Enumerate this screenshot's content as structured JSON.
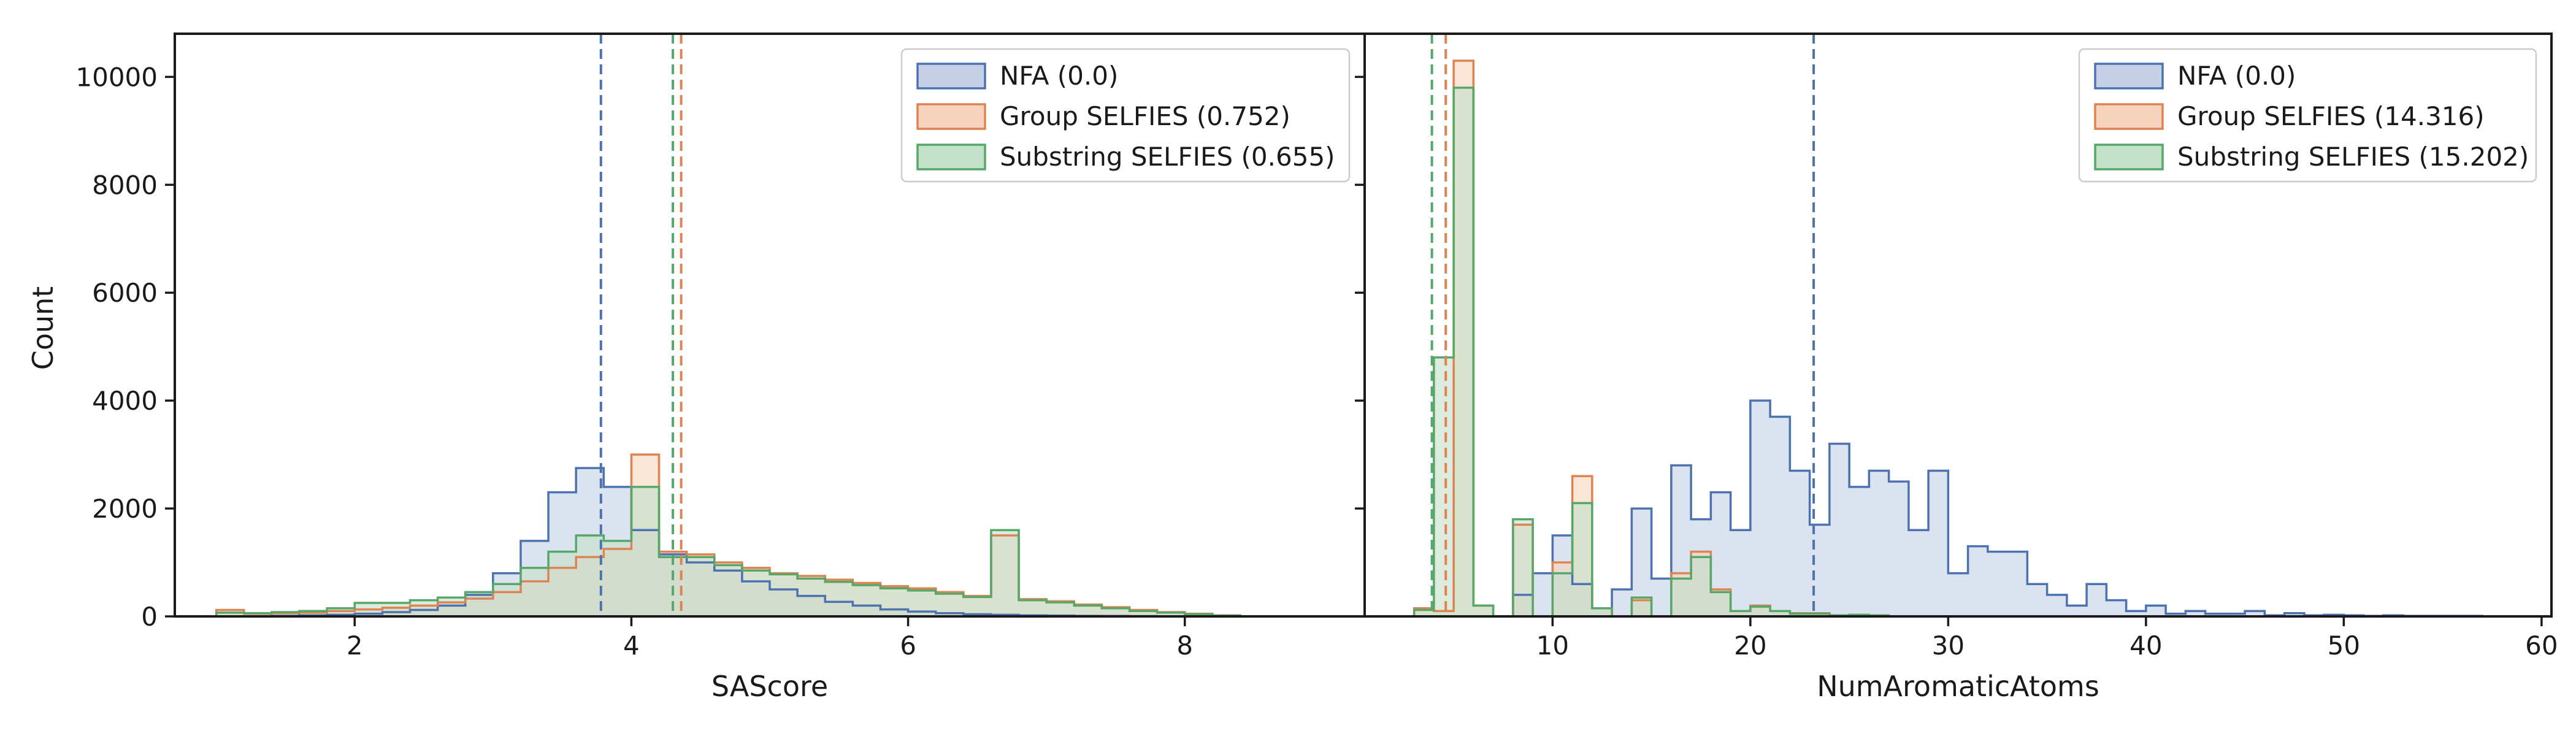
{
  "figure": {
    "ylabel": "Count"
  },
  "chart_data": [
    {
      "type": "histogram",
      "xlabel": "SAScore",
      "ylabel": "Count",
      "xlim": [
        0.7,
        9.3
      ],
      "ylim": [
        0,
        10800
      ],
      "x_ticks": [
        2,
        4,
        6,
        8
      ],
      "y_ticks": [
        0,
        2000,
        4000,
        6000,
        8000,
        10000
      ],
      "legend_position": "top-right",
      "series": [
        {
          "name": "NFA (0.0)",
          "color": "#4c72b0",
          "fill": "#c5d0e6",
          "mean": 3.78,
          "bin_edges": [
            1.0,
            1.2,
            1.4,
            1.6,
            1.8,
            2.0,
            2.2,
            2.4,
            2.6,
            2.8,
            3.0,
            3.2,
            3.4,
            3.6,
            3.8,
            4.0,
            4.2,
            4.4,
            4.6,
            4.8,
            5.0,
            5.2,
            5.4,
            5.6,
            5.8,
            6.0,
            6.2,
            6.4,
            6.6,
            6.8,
            7.0,
            7.2,
            7.4,
            7.6,
            7.8,
            8.0,
            8.2,
            8.4
          ],
          "counts": [
            0,
            0,
            10,
            20,
            30,
            50,
            80,
            120,
            200,
            400,
            800,
            1400,
            2300,
            2750,
            2400,
            1600,
            1150,
            1000,
            850,
            650,
            500,
            380,
            270,
            200,
            130,
            90,
            60,
            40,
            30,
            20,
            15,
            10,
            8,
            5,
            3,
            2,
            1
          ]
        },
        {
          "name": "Group SELFIES (0.752)",
          "color": "#dd8452",
          "fill": "#f6d3bd",
          "mean": 4.36,
          "bin_edges": [
            1.0,
            1.2,
            1.4,
            1.6,
            1.8,
            2.0,
            2.2,
            2.4,
            2.6,
            2.8,
            3.0,
            3.2,
            3.4,
            3.6,
            3.8,
            4.0,
            4.2,
            4.4,
            4.6,
            4.8,
            5.0,
            5.2,
            5.4,
            5.6,
            5.8,
            6.0,
            6.2,
            6.4,
            6.6,
            6.8,
            7.0,
            7.2,
            7.4,
            7.6,
            7.8,
            8.0,
            8.2,
            8.4
          ],
          "counts": [
            120,
            50,
            60,
            70,
            100,
            130,
            160,
            200,
            260,
            330,
            450,
            650,
            900,
            1100,
            1250,
            3000,
            1200,
            1150,
            1000,
            900,
            800,
            750,
            680,
            620,
            560,
            520,
            450,
            380,
            1500,
            320,
            280,
            220,
            170,
            120,
            80,
            50,
            20
          ]
        },
        {
          "name": "Substring SELFIES (0.655)",
          "color": "#55a868",
          "fill": "#c3e0c9",
          "mean": 4.3,
          "bin_edges": [
            1.0,
            1.2,
            1.4,
            1.6,
            1.8,
            2.0,
            2.2,
            2.4,
            2.6,
            2.8,
            3.0,
            3.2,
            3.4,
            3.6,
            3.8,
            4.0,
            4.2,
            4.4,
            4.6,
            4.8,
            5.0,
            5.2,
            5.4,
            5.6,
            5.8,
            6.0,
            6.2,
            6.4,
            6.6,
            6.8,
            7.0,
            7.2,
            7.4,
            7.6,
            7.8,
            8.0,
            8.2,
            8.4
          ],
          "counts": [
            70,
            60,
            80,
            100,
            150,
            250,
            250,
            300,
            350,
            450,
            600,
            900,
            1200,
            1500,
            1400,
            2400,
            1100,
            1100,
            950,
            850,
            780,
            700,
            640,
            580,
            520,
            480,
            420,
            360,
            1600,
            300,
            260,
            200,
            150,
            100,
            70,
            40,
            15
          ]
        }
      ]
    },
    {
      "type": "histogram",
      "xlabel": "NumAromaticAtoms",
      "xlim": [
        0.5,
        60.5
      ],
      "ylim": [
        0,
        10800
      ],
      "x_ticks": [
        10,
        20,
        30,
        40,
        50,
        60
      ],
      "y_ticks": [
        0,
        2000,
        4000,
        6000,
        8000,
        10000
      ],
      "legend_position": "top-right",
      "series": [
        {
          "name": "NFA (0.0)",
          "color": "#4c72b0",
          "fill": "#c5d0e6",
          "mean": 23.2,
          "bin_edges": [
            5,
            6,
            7,
            8,
            9,
            10,
            11,
            12,
            13,
            14,
            15,
            16,
            17,
            18,
            19,
            20,
            21,
            22,
            23,
            24,
            25,
            26,
            27,
            28,
            29,
            30,
            31,
            32,
            33,
            34,
            35,
            36,
            37,
            38,
            39,
            40,
            41,
            42,
            43,
            44,
            45,
            46,
            47,
            48,
            49,
            50,
            51,
            52,
            53,
            54,
            55,
            56,
            57
          ],
          "counts": [
            0,
            0,
            0,
            400,
            800,
            1500,
            600,
            150,
            500,
            2000,
            700,
            2800,
            1800,
            2300,
            1600,
            4000,
            3700,
            2700,
            1700,
            3200,
            2400,
            2700,
            2500,
            1600,
            2700,
            800,
            1300,
            1200,
            1200,
            600,
            400,
            200,
            600,
            300,
            100,
            200,
            50,
            100,
            50,
            50,
            100,
            20,
            60,
            20,
            30,
            20,
            10,
            20,
            10,
            10,
            10,
            10
          ]
        },
        {
          "name": "Group SELFIES (14.316)",
          "color": "#dd8452",
          "fill": "#f6d3bd",
          "mean": 4.6,
          "bin_edges": [
            3,
            4,
            5,
            6,
            7,
            8,
            9,
            10,
            11,
            12,
            13,
            14,
            15,
            16,
            17,
            18,
            19,
            20,
            21,
            22,
            23,
            24,
            25,
            26,
            27
          ],
          "counts": [
            150,
            100,
            10300,
            200,
            0,
            1700,
            0,
            1000,
            2600,
            150,
            0,
            300,
            0,
            800,
            1200,
            500,
            100,
            200,
            100,
            60,
            60,
            20,
            30,
            20
          ]
        },
        {
          "name": "Substring SELFIES (15.202)",
          "color": "#55a868",
          "fill": "#c3e0c9",
          "mean": 3.9,
          "bin_edges": [
            3,
            4,
            5,
            6,
            7,
            8,
            9,
            10,
            11,
            12,
            13,
            14,
            15,
            16,
            17,
            18,
            19,
            20,
            21,
            22,
            23,
            24,
            25,
            26,
            27
          ],
          "counts": [
            120,
            4800,
            9800,
            200,
            0,
            1800,
            0,
            800,
            2100,
            150,
            0,
            350,
            0,
            700,
            1100,
            450,
            100,
            180,
            100,
            50,
            50,
            20,
            30,
            20
          ]
        }
      ]
    }
  ]
}
